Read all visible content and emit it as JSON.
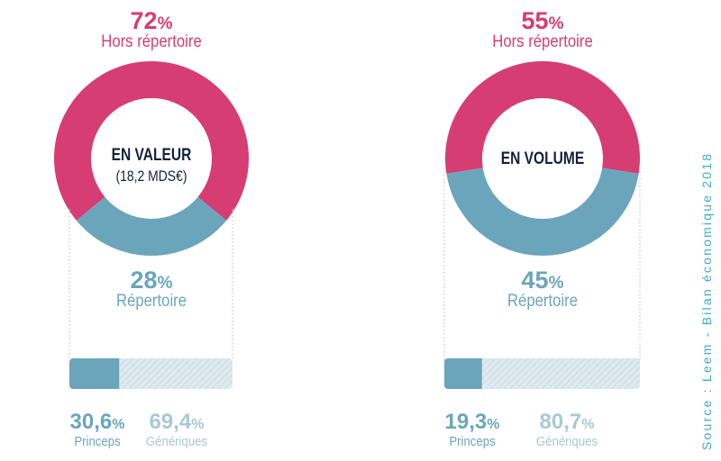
{
  "chart_data": [
    {
      "type": "pie",
      "center_title": "EN VALEUR",
      "center_subtitle": "(18,2 MDS€)",
      "slices": [
        {
          "label": "Hors répertoire",
          "value": 72,
          "pct_text": "72",
          "color": "#d63d72"
        },
        {
          "label": "Répertoire",
          "value": 28,
          "pct_text": "28",
          "color": "#6ba5bb"
        }
      ],
      "breakdown": {
        "type": "bar",
        "parts": [
          {
            "label": "Princeps",
            "value": 30.6,
            "pct_text": "30,6",
            "color": "#6ba5bb"
          },
          {
            "label": "Génériques",
            "value": 69.4,
            "pct_text": "69,4",
            "color": "#c8dce4"
          }
        ]
      }
    },
    {
      "type": "pie",
      "center_title": "EN VOLUME",
      "center_subtitle": "",
      "slices": [
        {
          "label": "Hors répertoire",
          "value": 55,
          "pct_text": "55",
          "color": "#d63d72"
        },
        {
          "label": "Répertoire",
          "value": 45,
          "pct_text": "45",
          "color": "#6ba5bb"
        }
      ],
      "breakdown": {
        "type": "bar",
        "parts": [
          {
            "label": "Princeps",
            "value": 19.3,
            "pct_text": "19,3",
            "color": "#6ba5bb"
          },
          {
            "label": "Génériques",
            "value": 80.7,
            "pct_text": "80,7",
            "color": "#c8dce4"
          }
        ]
      }
    }
  ],
  "percent_symbol": "%",
  "source": "Source : Leem -  Bilan économique 2018"
}
